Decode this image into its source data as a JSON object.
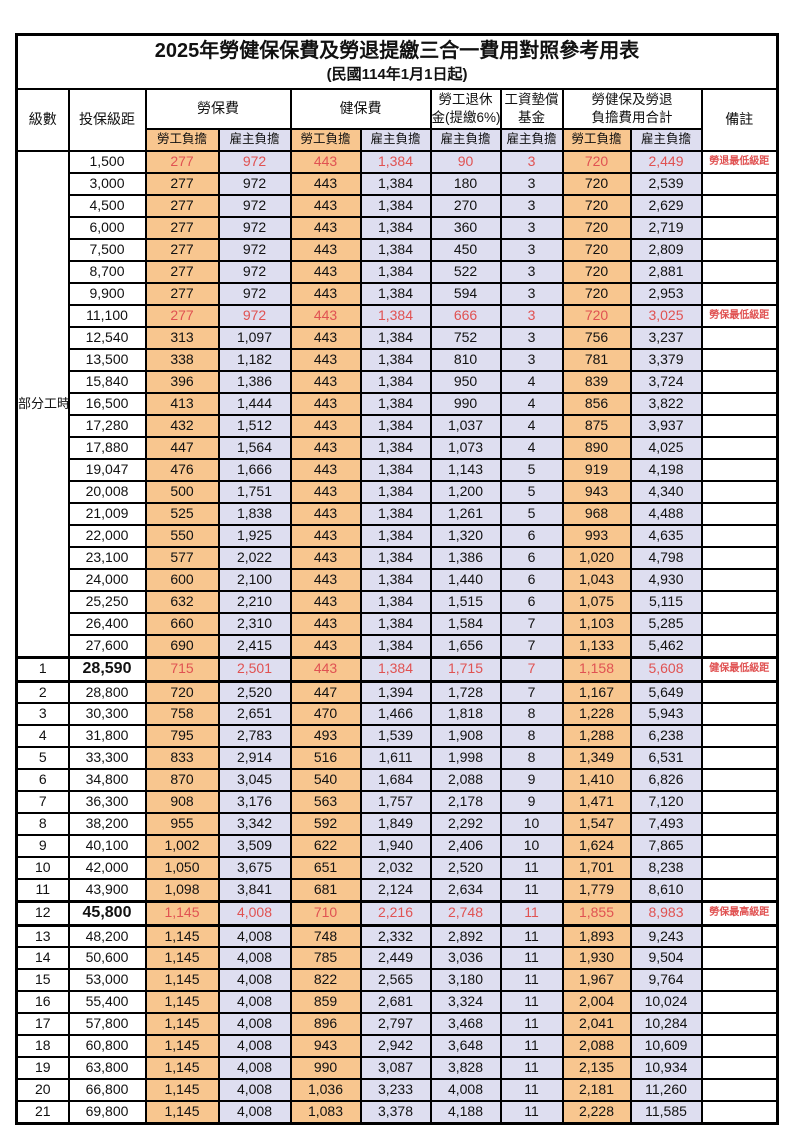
{
  "title": "2025年勞健保保費及勞退提繳三合一費用對照參考用表",
  "subtitle": "(民國114年1月1日起)",
  "header": {
    "level": "級數",
    "bracket": "投保級距",
    "labor": "勞保費",
    "health": "健保費",
    "pension_l1": "勞工退休",
    "pension_l2": "金(提繳6%)",
    "fund_l1": "工資墊償",
    "fund_l2": "基金",
    "total_l1": "勞健保及勞退",
    "total_l2": "負擔費用合計",
    "note": "備註",
    "employee": "勞工負擔",
    "employer": "雇主負擔"
  },
  "colors": {
    "employee_bg": "#f8c68f",
    "employer_bg": "#dedef0",
    "highlight_text": "#e05252",
    "grid": "#000000"
  },
  "notes": {
    "pension_min": "勞退最低級距",
    "labor_min": "勞保最低級距",
    "health_min": "健保最低級距",
    "labor_max": "勞保最高級距"
  },
  "groups": [
    {
      "label": "部分工時",
      "rows": [
        {
          "bracket": "1,500",
          "labor_emp": "277",
          "labor_er": "972",
          "health_emp": "443",
          "health_er": "1,384",
          "pension_er": "90",
          "fund_er": "3",
          "total_emp": "720",
          "total_er": "2,449",
          "note": "勞退最低級距",
          "highlight": true
        },
        {
          "bracket": "3,000",
          "labor_emp": "277",
          "labor_er": "972",
          "health_emp": "443",
          "health_er": "1,384",
          "pension_er": "180",
          "fund_er": "3",
          "total_emp": "720",
          "total_er": "2,539",
          "note": ""
        },
        {
          "bracket": "4,500",
          "labor_emp": "277",
          "labor_er": "972",
          "health_emp": "443",
          "health_er": "1,384",
          "pension_er": "270",
          "fund_er": "3",
          "total_emp": "720",
          "total_er": "2,629",
          "note": ""
        },
        {
          "bracket": "6,000",
          "labor_emp": "277",
          "labor_er": "972",
          "health_emp": "443",
          "health_er": "1,384",
          "pension_er": "360",
          "fund_er": "3",
          "total_emp": "720",
          "total_er": "2,719",
          "note": ""
        },
        {
          "bracket": "7,500",
          "labor_emp": "277",
          "labor_er": "972",
          "health_emp": "443",
          "health_er": "1,384",
          "pension_er": "450",
          "fund_er": "3",
          "total_emp": "720",
          "total_er": "2,809",
          "note": ""
        },
        {
          "bracket": "8,700",
          "labor_emp": "277",
          "labor_er": "972",
          "health_emp": "443",
          "health_er": "1,384",
          "pension_er": "522",
          "fund_er": "3",
          "total_emp": "720",
          "total_er": "2,881",
          "note": ""
        },
        {
          "bracket": "9,900",
          "labor_emp": "277",
          "labor_er": "972",
          "health_emp": "443",
          "health_er": "1,384",
          "pension_er": "594",
          "fund_er": "3",
          "total_emp": "720",
          "total_er": "2,953",
          "note": ""
        },
        {
          "bracket": "11,100",
          "labor_emp": "277",
          "labor_er": "972",
          "health_emp": "443",
          "health_er": "1,384",
          "pension_er": "666",
          "fund_er": "3",
          "total_emp": "720",
          "total_er": "3,025",
          "note": "勞保最低級距",
          "highlight": true
        },
        {
          "bracket": "12,540",
          "labor_emp": "313",
          "labor_er": "1,097",
          "health_emp": "443",
          "health_er": "1,384",
          "pension_er": "752",
          "fund_er": "3",
          "total_emp": "756",
          "total_er": "3,237",
          "note": ""
        },
        {
          "bracket": "13,500",
          "labor_emp": "338",
          "labor_er": "1,182",
          "health_emp": "443",
          "health_er": "1,384",
          "pension_er": "810",
          "fund_er": "3",
          "total_emp": "781",
          "total_er": "3,379",
          "note": ""
        },
        {
          "bracket": "15,840",
          "labor_emp": "396",
          "labor_er": "1,386",
          "health_emp": "443",
          "health_er": "1,384",
          "pension_er": "950",
          "fund_er": "4",
          "total_emp": "839",
          "total_er": "3,724",
          "note": ""
        },
        {
          "bracket": "16,500",
          "labor_emp": "413",
          "labor_er": "1,444",
          "health_emp": "443",
          "health_er": "1,384",
          "pension_er": "990",
          "fund_er": "4",
          "total_emp": "856",
          "total_er": "3,822",
          "note": ""
        },
        {
          "bracket": "17,280",
          "labor_emp": "432",
          "labor_er": "1,512",
          "health_emp": "443",
          "health_er": "1,384",
          "pension_er": "1,037",
          "fund_er": "4",
          "total_emp": "875",
          "total_er": "3,937",
          "note": ""
        },
        {
          "bracket": "17,880",
          "labor_emp": "447",
          "labor_er": "1,564",
          "health_emp": "443",
          "health_er": "1,384",
          "pension_er": "1,073",
          "fund_er": "4",
          "total_emp": "890",
          "total_er": "4,025",
          "note": ""
        },
        {
          "bracket": "19,047",
          "labor_emp": "476",
          "labor_er": "1,666",
          "health_emp": "443",
          "health_er": "1,384",
          "pension_er": "1,143",
          "fund_er": "5",
          "total_emp": "919",
          "total_er": "4,198",
          "note": ""
        },
        {
          "bracket": "20,008",
          "labor_emp": "500",
          "labor_er": "1,751",
          "health_emp": "443",
          "health_er": "1,384",
          "pension_er": "1,200",
          "fund_er": "5",
          "total_emp": "943",
          "total_er": "4,340",
          "note": ""
        },
        {
          "bracket": "21,009",
          "labor_emp": "525",
          "labor_er": "1,838",
          "health_emp": "443",
          "health_er": "1,384",
          "pension_er": "1,261",
          "fund_er": "5",
          "total_emp": "968",
          "total_er": "4,488",
          "note": ""
        },
        {
          "bracket": "22,000",
          "labor_emp": "550",
          "labor_er": "1,925",
          "health_emp": "443",
          "health_er": "1,384",
          "pension_er": "1,320",
          "fund_er": "6",
          "total_emp": "993",
          "total_er": "4,635",
          "note": ""
        },
        {
          "bracket": "23,100",
          "labor_emp": "577",
          "labor_er": "2,022",
          "health_emp": "443",
          "health_er": "1,384",
          "pension_er": "1,386",
          "fund_er": "6",
          "total_emp": "1,020",
          "total_er": "4,798",
          "note": ""
        },
        {
          "bracket": "24,000",
          "labor_emp": "600",
          "labor_er": "2,100",
          "health_emp": "443",
          "health_er": "1,384",
          "pension_er": "1,440",
          "fund_er": "6",
          "total_emp": "1,043",
          "total_er": "4,930",
          "note": ""
        },
        {
          "bracket": "25,250",
          "labor_emp": "632",
          "labor_er": "2,210",
          "health_emp": "443",
          "health_er": "1,384",
          "pension_er": "1,515",
          "fund_er": "6",
          "total_emp": "1,075",
          "total_er": "5,115",
          "note": ""
        },
        {
          "bracket": "26,400",
          "labor_emp": "660",
          "labor_er": "2,310",
          "health_emp": "443",
          "health_er": "1,384",
          "pension_er": "1,584",
          "fund_er": "7",
          "total_emp": "1,103",
          "total_er": "5,285",
          "note": ""
        },
        {
          "bracket": "27,600",
          "labor_emp": "690",
          "labor_er": "2,415",
          "health_emp": "443",
          "health_er": "1,384",
          "pension_er": "1,656",
          "fund_er": "7",
          "total_emp": "1,133",
          "total_er": "5,462",
          "note": ""
        }
      ]
    },
    {
      "label": null,
      "rows": [
        {
          "level": "1",
          "bracket": "28,590",
          "labor_emp": "715",
          "labor_er": "2,501",
          "health_emp": "443",
          "health_er": "1,384",
          "pension_er": "1,715",
          "fund_er": "7",
          "total_emp": "1,158",
          "total_er": "5,608",
          "note": "健保最低級距",
          "highlight": true,
          "heavy": true
        },
        {
          "level": "2",
          "bracket": "28,800",
          "labor_emp": "720",
          "labor_er": "2,520",
          "health_emp": "447",
          "health_er": "1,394",
          "pension_er": "1,728",
          "fund_er": "7",
          "total_emp": "1,167",
          "total_er": "5,649",
          "note": ""
        },
        {
          "level": "3",
          "bracket": "30,300",
          "labor_emp": "758",
          "labor_er": "2,651",
          "health_emp": "470",
          "health_er": "1,466",
          "pension_er": "1,818",
          "fund_er": "8",
          "total_emp": "1,228",
          "total_er": "5,943",
          "note": ""
        },
        {
          "level": "4",
          "bracket": "31,800",
          "labor_emp": "795",
          "labor_er": "2,783",
          "health_emp": "493",
          "health_er": "1,539",
          "pension_er": "1,908",
          "fund_er": "8",
          "total_emp": "1,288",
          "total_er": "6,238",
          "note": ""
        },
        {
          "level": "5",
          "bracket": "33,300",
          "labor_emp": "833",
          "labor_er": "2,914",
          "health_emp": "516",
          "health_er": "1,611",
          "pension_er": "1,998",
          "fund_er": "8",
          "total_emp": "1,349",
          "total_er": "6,531",
          "note": ""
        },
        {
          "level": "6",
          "bracket": "34,800",
          "labor_emp": "870",
          "labor_er": "3,045",
          "health_emp": "540",
          "health_er": "1,684",
          "pension_er": "2,088",
          "fund_er": "9",
          "total_emp": "1,410",
          "total_er": "6,826",
          "note": ""
        },
        {
          "level": "7",
          "bracket": "36,300",
          "labor_emp": "908",
          "labor_er": "3,176",
          "health_emp": "563",
          "health_er": "1,757",
          "pension_er": "2,178",
          "fund_er": "9",
          "total_emp": "1,471",
          "total_er": "7,120",
          "note": ""
        },
        {
          "level": "8",
          "bracket": "38,200",
          "labor_emp": "955",
          "labor_er": "3,342",
          "health_emp": "592",
          "health_er": "1,849",
          "pension_er": "2,292",
          "fund_er": "10",
          "total_emp": "1,547",
          "total_er": "7,493",
          "note": ""
        },
        {
          "level": "9",
          "bracket": "40,100",
          "labor_emp": "1,002",
          "labor_er": "3,509",
          "health_emp": "622",
          "health_er": "1,940",
          "pension_er": "2,406",
          "fund_er": "10",
          "total_emp": "1,624",
          "total_er": "7,865",
          "note": ""
        },
        {
          "level": "10",
          "bracket": "42,000",
          "labor_emp": "1,050",
          "labor_er": "3,675",
          "health_emp": "651",
          "health_er": "2,032",
          "pension_er": "2,520",
          "fund_er": "11",
          "total_emp": "1,701",
          "total_er": "8,238",
          "note": ""
        },
        {
          "level": "11",
          "bracket": "43,900",
          "labor_emp": "1,098",
          "labor_er": "3,841",
          "health_emp": "681",
          "health_er": "2,124",
          "pension_er": "2,634",
          "fund_er": "11",
          "total_emp": "1,779",
          "total_er": "8,610",
          "note": ""
        },
        {
          "level": "12",
          "bracket": "45,800",
          "labor_emp": "1,145",
          "labor_er": "4,008",
          "health_emp": "710",
          "health_er": "2,216",
          "pension_er": "2,748",
          "fund_er": "11",
          "total_emp": "1,855",
          "total_er": "8,983",
          "note": "勞保最高級距",
          "highlight": true,
          "heavy": true
        },
        {
          "level": "13",
          "bracket": "48,200",
          "labor_emp": "1,145",
          "labor_er": "4,008",
          "health_emp": "748",
          "health_er": "2,332",
          "pension_er": "2,892",
          "fund_er": "11",
          "total_emp": "1,893",
          "total_er": "9,243",
          "note": ""
        },
        {
          "level": "14",
          "bracket": "50,600",
          "labor_emp": "1,145",
          "labor_er": "4,008",
          "health_emp": "785",
          "health_er": "2,449",
          "pension_er": "3,036",
          "fund_er": "11",
          "total_emp": "1,930",
          "total_er": "9,504",
          "note": ""
        },
        {
          "level": "15",
          "bracket": "53,000",
          "labor_emp": "1,145",
          "labor_er": "4,008",
          "health_emp": "822",
          "health_er": "2,565",
          "pension_er": "3,180",
          "fund_er": "11",
          "total_emp": "1,967",
          "total_er": "9,764",
          "note": ""
        },
        {
          "level": "16",
          "bracket": "55,400",
          "labor_emp": "1,145",
          "labor_er": "4,008",
          "health_emp": "859",
          "health_er": "2,681",
          "pension_er": "3,324",
          "fund_er": "11",
          "total_emp": "2,004",
          "total_er": "10,024",
          "note": ""
        },
        {
          "level": "17",
          "bracket": "57,800",
          "labor_emp": "1,145",
          "labor_er": "4,008",
          "health_emp": "896",
          "health_er": "2,797",
          "pension_er": "3,468",
          "fund_er": "11",
          "total_emp": "2,041",
          "total_er": "10,284",
          "note": ""
        },
        {
          "level": "18",
          "bracket": "60,800",
          "labor_emp": "1,145",
          "labor_er": "4,008",
          "health_emp": "943",
          "health_er": "2,942",
          "pension_er": "3,648",
          "fund_er": "11",
          "total_emp": "2,088",
          "total_er": "10,609",
          "note": ""
        },
        {
          "level": "19",
          "bracket": "63,800",
          "labor_emp": "1,145",
          "labor_er": "4,008",
          "health_emp": "990",
          "health_er": "3,087",
          "pension_er": "3,828",
          "fund_er": "11",
          "total_emp": "2,135",
          "total_er": "10,934",
          "note": ""
        },
        {
          "level": "20",
          "bracket": "66,800",
          "labor_emp": "1,145",
          "labor_er": "4,008",
          "health_emp": "1,036",
          "health_er": "3,233",
          "pension_er": "4,008",
          "fund_er": "11",
          "total_emp": "2,181",
          "total_er": "11,260",
          "note": ""
        },
        {
          "level": "21",
          "bracket": "69,800",
          "labor_emp": "1,145",
          "labor_er": "4,008",
          "health_emp": "1,083",
          "health_er": "3,378",
          "pension_er": "4,188",
          "fund_er": "11",
          "total_emp": "2,228",
          "total_er": "11,585",
          "note": ""
        }
      ]
    }
  ]
}
